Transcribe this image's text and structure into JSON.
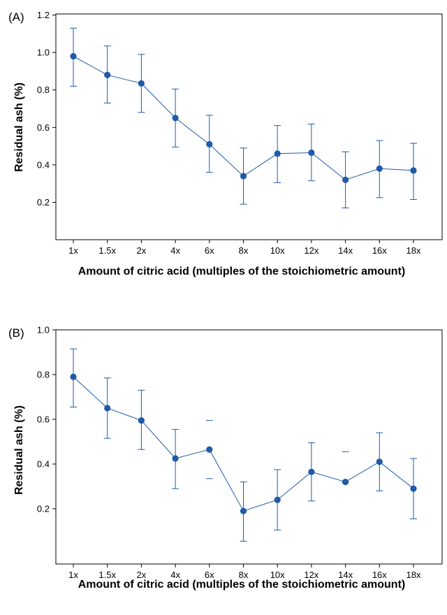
{
  "series_color": "#1f5aa8",
  "chart_data": [
    {
      "panel_label": "(A)",
      "type": "line",
      "xlabel": "Amount of citric acid (multiples of the stoichiometric amount)",
      "ylabel": "Residual ash (%)",
      "categories": [
        "1x",
        "1.5x",
        "2x",
        "4x",
        "6x",
        "8x",
        "10x",
        "12x",
        "14x",
        "16x",
        "18x"
      ],
      "ylim": [
        0.0,
        1.2
      ],
      "yticks": [
        0.2,
        0.4,
        0.6,
        0.8,
        1.0,
        1.2
      ],
      "ytick_labels": [
        "0.2",
        "0.4",
        "0.6",
        "0.8",
        "1.0",
        "1.2"
      ],
      "series": [
        {
          "values": [
            0.98,
            0.88,
            0.835,
            0.65,
            0.51,
            0.34,
            0.46,
            0.465,
            0.32,
            0.38,
            0.37
          ],
          "err_low": [
            0.82,
            0.73,
            0.68,
            0.495,
            0.36,
            0.19,
            0.305,
            0.315,
            0.17,
            0.225,
            0.215
          ],
          "err_high": [
            1.13,
            1.035,
            0.99,
            0.805,
            0.665,
            0.49,
            0.61,
            0.618,
            0.47,
            0.53,
            0.515
          ],
          "stem_low": [
            true,
            true,
            true,
            true,
            true,
            true,
            true,
            true,
            true,
            true,
            true
          ],
          "stem_high": [
            true,
            true,
            true,
            true,
            true,
            true,
            true,
            true,
            true,
            true,
            true
          ]
        }
      ],
      "grid": false,
      "legend": "none"
    },
    {
      "panel_label": "(B)",
      "type": "line",
      "xlabel": "Amount of citric acid (multiples of the stoichiometric amount)",
      "ylabel": "Residual ash (%)",
      "categories": [
        "1x",
        "1.5x",
        "2x",
        "4x",
        "6x",
        "8x",
        "10x",
        "12x",
        "14x",
        "16x",
        "18x"
      ],
      "ylim": [
        0.04,
        1.0
      ],
      "yticks": [
        0.2,
        0.4,
        0.6,
        0.8,
        1.0
      ],
      "ytick_labels": [
        "0.2",
        "0.4",
        "0.6",
        "0.8",
        "1.0"
      ],
      "series": [
        {
          "values": [
            0.79,
            0.65,
            0.595,
            0.425,
            0.465,
            0.19,
            0.24,
            0.365,
            0.32,
            0.41,
            0.29
          ],
          "err_low": [
            0.655,
            0.515,
            0.465,
            0.29,
            0.335,
            0.055,
            0.105,
            0.235,
            0.32,
            0.28,
            0.155
          ],
          "err_high": [
            0.915,
            0.785,
            0.73,
            0.555,
            0.595,
            0.32,
            0.375,
            0.495,
            0.455,
            0.54,
            0.425
          ],
          "stem_low": [
            true,
            true,
            true,
            true,
            false,
            true,
            true,
            true,
            false,
            true,
            true
          ],
          "stem_high": [
            true,
            true,
            true,
            true,
            false,
            true,
            true,
            true,
            false,
            true,
            true
          ]
        }
      ],
      "grid": false,
      "legend": "none"
    }
  ]
}
